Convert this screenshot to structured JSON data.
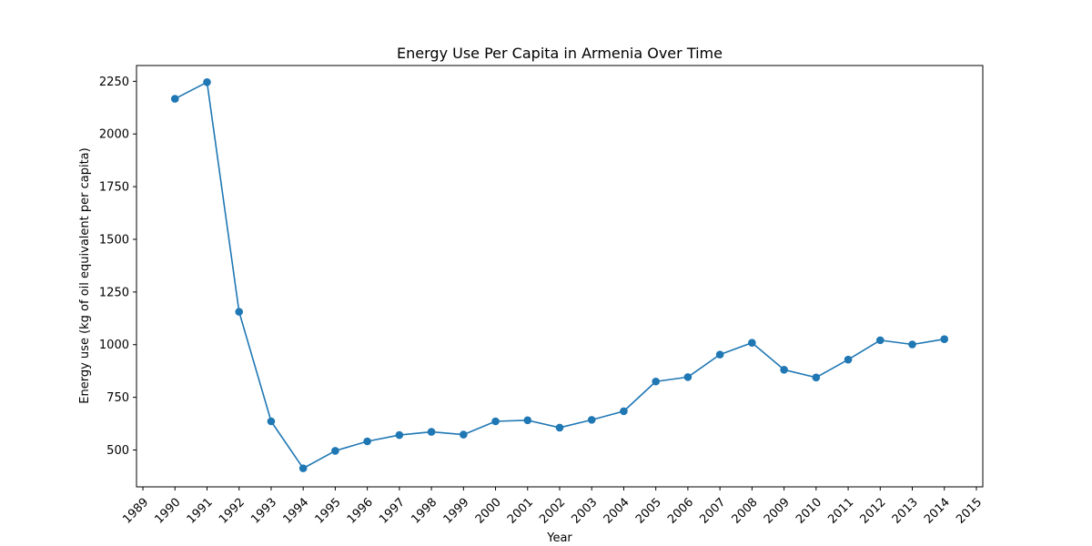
{
  "chart_data": {
    "type": "line",
    "title": "Energy Use Per Capita in Armenia Over Time",
    "xlabel": "Year",
    "ylabel": "Energy use (kg of oil equivalent per capita)",
    "xlim": [
      1988.8,
      2015.2
    ],
    "ylim": [
      325,
      2325
    ],
    "x_ticks": [
      1989,
      1990,
      1991,
      1992,
      1993,
      1994,
      1995,
      1996,
      1997,
      1998,
      1999,
      2000,
      2001,
      2002,
      2003,
      2004,
      2005,
      2006,
      2007,
      2008,
      2009,
      2010,
      2011,
      2012,
      2013,
      2014,
      2015
    ],
    "y_ticks": [
      500,
      750,
      1000,
      1250,
      1500,
      1750,
      2000,
      2250
    ],
    "grid": false,
    "color": "#1f77b4",
    "marker": "circle",
    "x": [
      1990,
      1991,
      1992,
      1993,
      1994,
      1995,
      1996,
      1997,
      1998,
      1999,
      2000,
      2001,
      2002,
      2003,
      2004,
      2005,
      2006,
      2007,
      2008,
      2009,
      2010,
      2011,
      2012,
      2013,
      2014
    ],
    "y": [
      2167,
      2246,
      1156,
      636,
      413,
      496,
      541,
      571,
      586,
      573,
      636,
      641,
      606,
      643,
      684,
      825,
      846,
      953,
      1009,
      881,
      844,
      929,
      1021,
      1001,
      1026
    ]
  }
}
